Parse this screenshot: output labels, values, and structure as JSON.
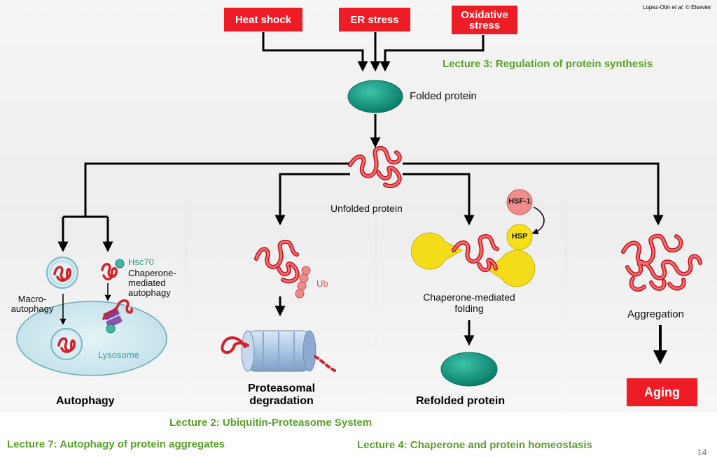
{
  "stressors": {
    "heat_shock": "Heat shock",
    "er_stress": "ER stress",
    "oxidative_line1": "Oxidative",
    "oxidative_line2": "stress"
  },
  "credit": {
    "authors": "Lopez-Otin",
    "etal": "et al.",
    "publisher": "© Elsevier"
  },
  "labels": {
    "folded_protein": "Folded protein",
    "unfolded_protein": "Unfolded protein",
    "hsc70": "Hsc70",
    "cma_line1": "Chaperone-",
    "cma_line2": "mediated",
    "cma_line3": "autophagy",
    "macro_line1": "Macro-",
    "macro_line2": "autophagy",
    "lysosome": "Lysosome",
    "ub": "Ub",
    "hsf1": "HSF-1",
    "hsp": "HSP",
    "cmf_line1": "Chaperone-mediated",
    "cmf_line2": "folding",
    "aggregation": "Aggregation"
  },
  "outcomes": {
    "autophagy": "Autophagy",
    "proteasomal_line1": "Proteasomal",
    "proteasomal_line2": "degradation",
    "refolded": "Refolded protein",
    "aging": "Aging"
  },
  "lectures": {
    "l3": "Lecture 3: Regulation of protein synthesis",
    "l2": "Lecture 2: Ubiquitin-Proteasome System",
    "l7": "Lecture 7: Autophagy of protein aggregates",
    "l4": "Lecture 4: Chaperone and protein homeostasis"
  },
  "page_number": "14",
  "colors": {
    "stress_red": "#ee1c24",
    "protein_teal": "#0e9e86",
    "unfolded_red": "#e8363f",
    "lecture_green": "#5aa02c",
    "chaperone_yellow": "#f5dc1a",
    "lysosome_blue": "#cfe8ee",
    "proteasome_blue": "#a9c6e4"
  }
}
